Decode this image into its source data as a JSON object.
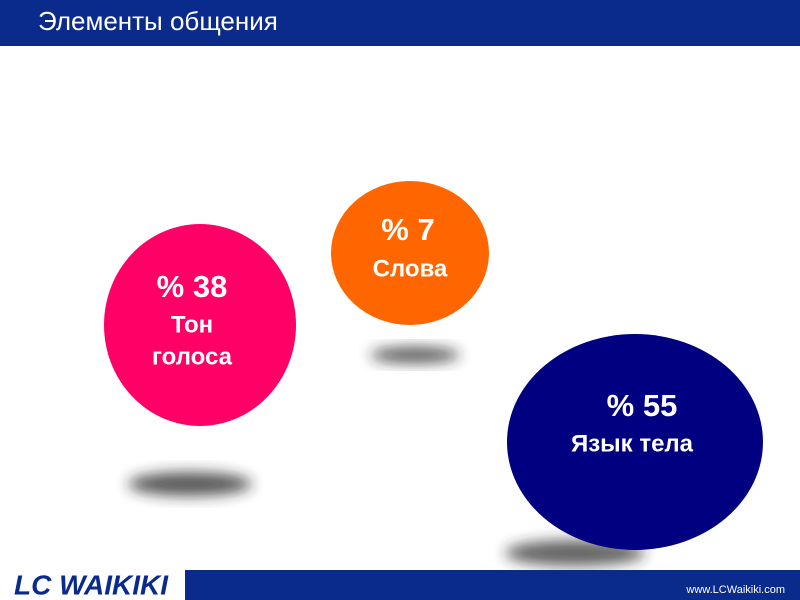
{
  "header": {
    "title": "Элементы общения"
  },
  "items": [
    {
      "percent": "% 38",
      "label_lines": [
        "Тон",
        "голоса"
      ]
    },
    {
      "percent": "% 7",
      "label_lines": [
        "Слова"
      ]
    },
    {
      "percent": "% 55",
      "label_lines": [
        "Язык тела"
      ]
    }
  ],
  "footer": {
    "logo": "LC WAIKIKI",
    "url": "www.LCWaikiki.com"
  }
}
